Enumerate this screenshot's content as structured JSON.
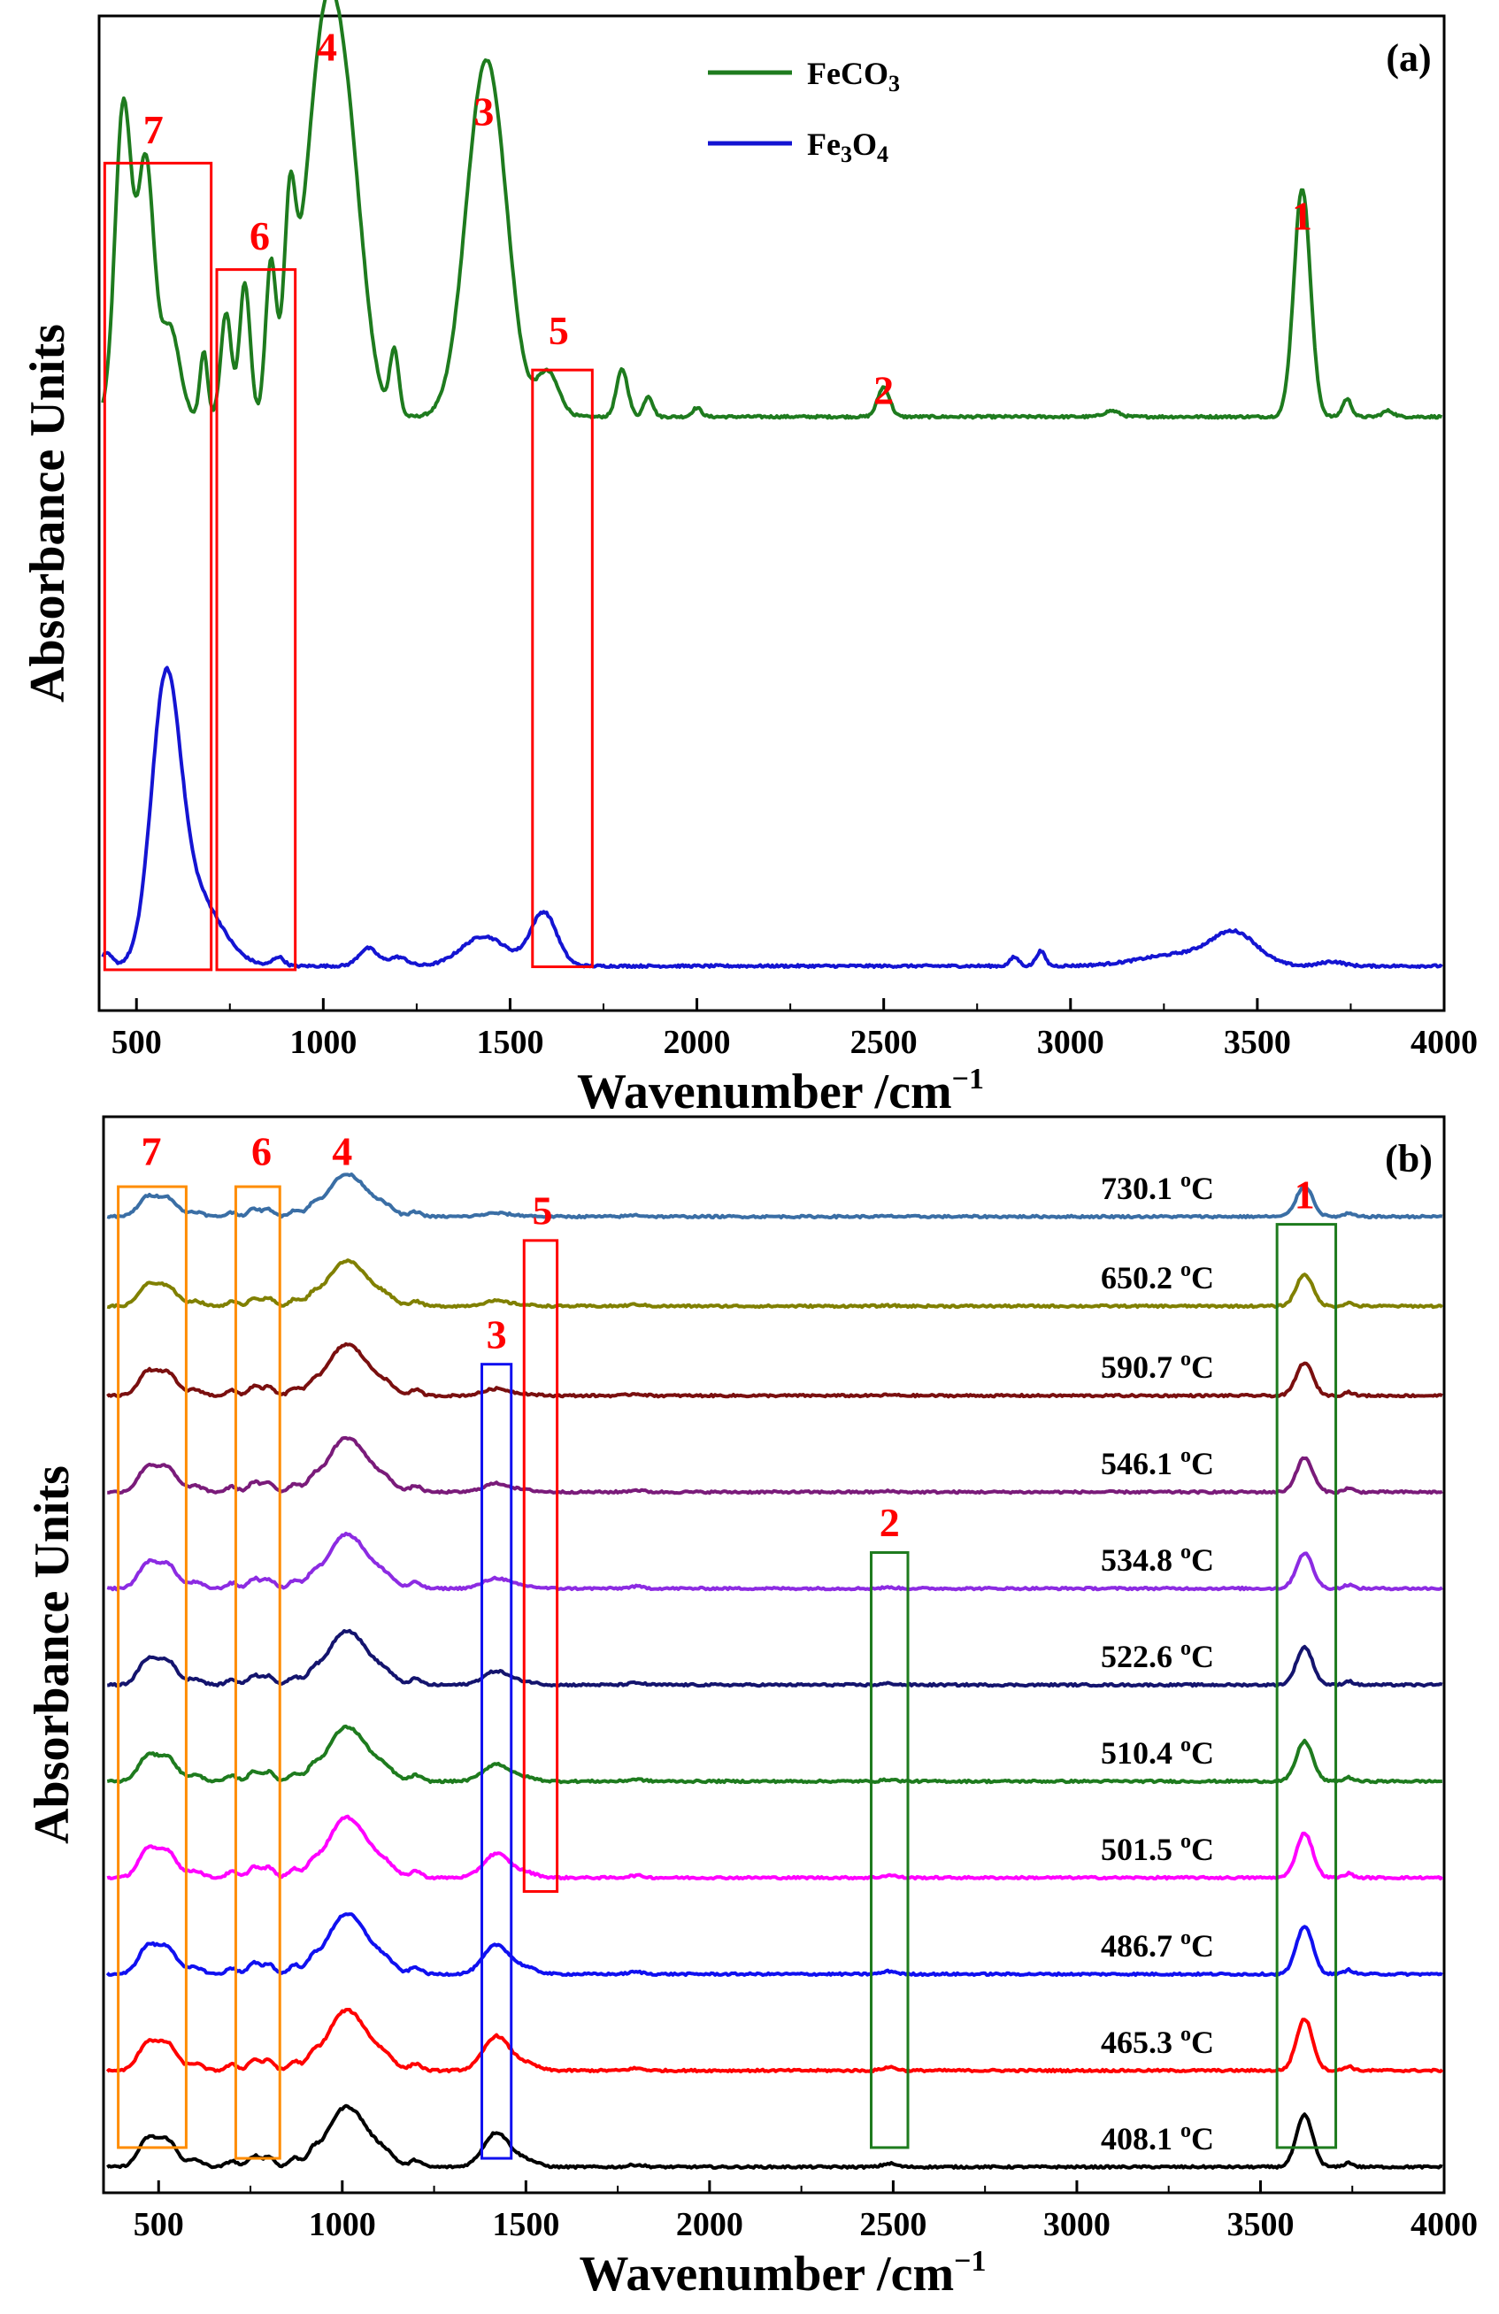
{
  "chart_data": [
    {
      "panel": "(a)",
      "type": "line",
      "xlabel": "Wavenumber /cm",
      "xlabel_sup": "−1",
      "ylabel": "Absorbance Units",
      "xlim": [
        400,
        4000
      ],
      "ylim": [
        -0.15,
        3.2
      ],
      "xticks": [
        500,
        1000,
        1500,
        2000,
        2500,
        3000,
        3500,
        4000
      ],
      "legend": [
        {
          "name": "FeCO3",
          "base": "FeCO",
          "sub": "3",
          "color": "#1e7b1e"
        },
        {
          "name": "Fe3O4",
          "base": "Fe",
          "sub1": "3",
          "mid": "O",
          "sub2": "4",
          "color": "#1414d2"
        }
      ],
      "series": [
        {
          "name": "FeCO3",
          "color": "#1e7b1e",
          "baseline": 1.85,
          "peaks": [
            [
              465,
              1.05,
              22
            ],
            [
              525,
              0.85,
              22
            ],
            [
              590,
              0.3,
              25
            ],
            [
              680,
              0.22,
              10
            ],
            [
              740,
              0.35,
              14
            ],
            [
              790,
              0.45,
              14
            ],
            [
              860,
              0.5,
              14
            ],
            [
              910,
              0.55,
              15
            ],
            [
              1010,
              1.35,
              55
            ],
            [
              1080,
              0.35,
              40
            ],
            [
              1190,
              0.22,
              12
            ],
            [
              1430,
              1.1,
              50
            ],
            [
              1480,
              0.2,
              40
            ],
            [
              1600,
              0.15,
              30
            ],
            [
              1800,
              0.16,
              15
            ],
            [
              1870,
              0.07,
              12
            ],
            [
              2000,
              0.03,
              12
            ],
            [
              2500,
              0.1,
              16
            ],
            [
              3110,
              0.02,
              20
            ],
            [
              3620,
              0.77,
              22
            ],
            [
              3740,
              0.06,
              12
            ],
            [
              3850,
              0.02,
              15
            ]
          ]
        },
        {
          "name": "Fe3O4",
          "color": "#1414d2",
          "baseline": 0.0,
          "peaks": [
            [
              420,
              0.04,
              15
            ],
            [
              578,
              0.85,
              38
            ],
            [
              650,
              0.25,
              70
            ],
            [
              880,
              0.03,
              15
            ],
            [
              1120,
              0.06,
              25
            ],
            [
              1200,
              0.03,
              25
            ],
            [
              1430,
              0.1,
              60
            ],
            [
              1590,
              0.18,
              35
            ],
            [
              2850,
              0.03,
              12
            ],
            [
              2920,
              0.05,
              12
            ],
            [
              3300,
              0.04,
              110
            ],
            [
              3440,
              0.1,
              60
            ],
            [
              3700,
              0.015,
              30
            ]
          ]
        }
      ],
      "annotations": [
        {
          "label": "1",
          "x": 3620,
          "y_frac": 0.215,
          "box": null
        },
        {
          "label": "2",
          "x": 2500,
          "y_frac": 0.39,
          "box": null
        },
        {
          "label": "3",
          "x": 1430,
          "y_frac": 0.11,
          "box": null
        },
        {
          "label": "4",
          "x": 1010,
          "y_frac": 0.045,
          "box": null
        },
        {
          "label": "5",
          "x": 1630,
          "y_frac": 0.33,
          "box": {
            "x0": 1560,
            "x1": 1720,
            "y0_frac": 0.356,
            "y1_frac": 0.956,
            "color": "#ff0000"
          }
        },
        {
          "label": "6",
          "x": 830,
          "y_frac": 0.235,
          "box": {
            "x0": 715,
            "x1": 925,
            "y0_frac": 0.255,
            "y1_frac": 0.959,
            "color": "#ff0000"
          }
        },
        {
          "label": "7",
          "x": 545,
          "y_frac": 0.128,
          "box": {
            "x0": 415,
            "x1": 700,
            "y0_frac": 0.148,
            "y1_frac": 0.959,
            "color": "#ff0000"
          }
        }
      ]
    },
    {
      "panel": "(b)",
      "type": "line",
      "xlabel": "Wavenumber /cm",
      "xlabel_sup": "−1",
      "ylabel": "Absorbance Units",
      "xlim": [
        350,
        4000
      ],
      "ylim": [
        -0.3,
        12.2
      ],
      "xticks": [
        500,
        1000,
        1500,
        2000,
        2500,
        3000,
        3500,
        4000
      ],
      "series_labels": [
        "730.1 °C",
        "650.2 °C",
        "590.7 °C",
        "546.1 °C",
        "534.8 °C",
        "522.6 °C",
        "510.4 °C",
        "501.5 °C",
        "486.7 °C",
        "465.3 °C",
        "408.1 °C"
      ],
      "series": [
        {
          "name": "408.1",
          "temp": "408.1 ",
          "unit": "C",
          "color": "#000000",
          "offset": 0.0,
          "amp": 1.0,
          "carb": 1.0
        },
        {
          "name": "465.3",
          "temp": "465.3 ",
          "unit": "C",
          "color": "#ff0000",
          "offset": 1.12,
          "amp": 1.0,
          "carb": 1.0
        },
        {
          "name": "486.7",
          "temp": "486.7 ",
          "unit": "C",
          "color": "#1010f0",
          "offset": 2.24,
          "amp": 1.0,
          "carb": 0.85
        },
        {
          "name": "501.5",
          "temp": "501.5 ",
          "unit": "C",
          "color": "#ff00ff",
          "offset": 3.36,
          "amp": 1.0,
          "carb": 0.7
        },
        {
          "name": "510.4",
          "temp": "510.4 ",
          "unit": "C",
          "color": "#1e7b1e",
          "offset": 4.48,
          "amp": 0.9,
          "carb": 0.5
        },
        {
          "name": "522.6",
          "temp": "522.6 ",
          "unit": "C",
          "color": "#14146e",
          "offset": 5.6,
          "amp": 0.9,
          "carb": 0.4
        },
        {
          "name": "534.8",
          "temp": "534.8 ",
          "unit": "C",
          "color": "#8c2be2",
          "offset": 6.72,
          "amp": 0.9,
          "carb": 0.3
        },
        {
          "name": "546.1",
          "temp": "546.1 ",
          "unit": "C",
          "color": "#7a1b7a",
          "offset": 7.84,
          "amp": 0.9,
          "carb": 0.25
        },
        {
          "name": "590.7",
          "temp": "590.7 ",
          "unit": "C",
          "color": "#7a0f0f",
          "offset": 8.96,
          "amp": 0.85,
          "carb": 0.2
        },
        {
          "name": "650.2",
          "temp": "650.2 ",
          "unit": "C",
          "color": "#808000",
          "offset": 10.0,
          "amp": 0.75,
          "carb": 0.15
        },
        {
          "name": "730.1",
          "temp": "730.1 ",
          "unit": "C",
          "color": "#3a6ea5",
          "offset": 11.04,
          "amp": 0.7,
          "carb": 0.1
        }
      ],
      "annotations": [
        {
          "label": "1",
          "x": 3620,
          "y_frac": 0.085,
          "color": "#ff0000",
          "box": {
            "x0": 3545,
            "x1": 3705,
            "y0_frac": 0.1,
            "y1_frac": 0.958,
            "color": "#1e7b1e"
          }
        },
        {
          "label": "2",
          "x": 2490,
          "y_frac": 0.39,
          "color": "#ff0000",
          "box": {
            "x0": 2440,
            "x1": 2540,
            "y0_frac": 0.405,
            "y1_frac": 0.958,
            "color": "#1e7b1e"
          }
        },
        {
          "label": "3",
          "x": 1420,
          "y_frac": 0.215,
          "color": "#ff0000",
          "box": {
            "x0": 1380,
            "x1": 1460,
            "y0_frac": 0.23,
            "y1_frac": 0.968,
            "color": "#1010f0"
          }
        },
        {
          "label": "4",
          "x": 1000,
          "y_frac": 0.045,
          "color": "#ff0000",
          "box": null
        },
        {
          "label": "5",
          "x": 1545,
          "y_frac": 0.1,
          "color": "#ff0000",
          "box": {
            "x0": 1495,
            "x1": 1585,
            "y0_frac": 0.115,
            "y1_frac": 0.72,
            "color": "#ff0000"
          }
        },
        {
          "label": "6",
          "x": 780,
          "y_frac": 0.045,
          "color": "#ff0000",
          "box": {
            "x0": 710,
            "x1": 830,
            "y0_frac": 0.065,
            "y1_frac": 0.968,
            "color": "#ff8c00"
          }
        },
        {
          "label": "7",
          "x": 480,
          "y_frac": 0.045,
          "color": "#ff0000",
          "box": {
            "x0": 390,
            "x1": 575,
            "y0_frac": 0.065,
            "y1_frac": 0.958,
            "color": "#ff8c00"
          }
        }
      ]
    }
  ]
}
